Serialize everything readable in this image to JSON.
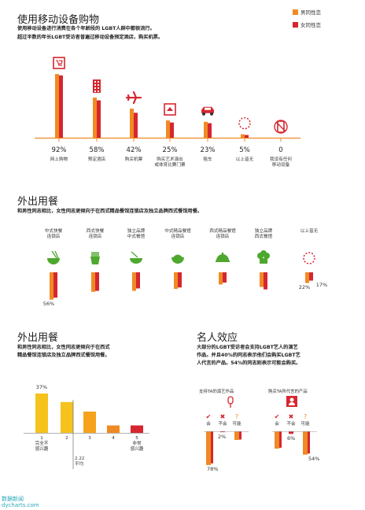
{
  "colors": {
    "gay_male": "#f08a24",
    "lesbian": "#d6262f",
    "yellow": "#f6c21c",
    "green": "#4ea82f",
    "red": "#d6262f"
  },
  "legend": {
    "male": "男同性恋",
    "female": "女同性恋"
  },
  "section1": {
    "title": "使用移动设备购物",
    "sub1": "使用移动设备进行消费在各个年龄段的 LGBT人群中都很流行。",
    "sub2": "超过半数的年长LGBT受访者普遍过移动设备预定酒店，购买机票。"
  },
  "section2": {
    "title": "外出用餐",
    "sub": "和男性同志相比，女性同志更倾向于在西式精品餐馆连锁店及独立品牌西式餐馆用餐。"
  },
  "section3": {
    "title": "外出用餐",
    "sub1": "和男性同志相比，女性同志更倾向于在西式",
    "sub2": "精品餐馆连锁店及独立品牌西式餐馆用餐。",
    "avg": "2.22",
    "avg_label": "平均"
  },
  "section4": {
    "title": "名人效应",
    "sub1": "大部分的LGBT受访者会支持LGBT艺人的演艺",
    "sub2": "作品。并且40%的同志表示他们会购买LGBT艺",
    "sub3": "人代言的产品。54%的同志则表示可能会购买。",
    "group_a": "支持TA的演艺作品",
    "group_b": "购买TA所代言的产品",
    "opts": [
      "会",
      "不会",
      "可能"
    ]
  },
  "watermark": {
    "line1": "数据新闻",
    "line2": "dycharts.com"
  },
  "chart_data": [
    {
      "type": "bar",
      "categories": [
        "网上购物",
        "预定酒店",
        "购买机票",
        "购买艺术演出或体育比赛门票",
        "租车",
        "以上皆无",
        "我没有任何移动设备"
      ],
      "labels": [
        "网上购物",
        "预定酒店",
        "购买机票",
        "购买艺术演出\n或体育比赛门票",
        "租车",
        "以上皆无",
        "我没有任何\n移动设备"
      ],
      "display": [
        "92%",
        "58%",
        "42%",
        "25%",
        "23%",
        "5%",
        "0"
      ],
      "series": [
        {
          "name": "男同性恋",
          "values": [
            92,
            58,
            42,
            25,
            23,
            5,
            0
          ]
        },
        {
          "name": "女同性恋",
          "values": [
            90,
            54,
            36,
            22,
            21,
            4,
            0
          ]
        }
      ],
      "ylim": [
        0,
        100
      ],
      "icons": [
        "shopping-cart-icon",
        "hotel-icon",
        "airplane-icon",
        "ticket-icon",
        "car-icon",
        "dotted-circle-icon",
        "no-device-icon"
      ]
    },
    {
      "type": "bar",
      "categories": [
        "中式快餐连锁店",
        "西式快餐连锁店",
        "独立品牌中式餐馆",
        "中式精品餐馆连锁店",
        "西式精品餐馆连锁店",
        "独立品牌西式餐馆",
        "以上皆无"
      ],
      "labels": [
        "中式快餐\n连锁店",
        "西式快餐\n连锁店",
        "独立品牌\n中式餐馆",
        "中式精品餐馆\n连锁店",
        "西式精品餐馆\n连锁店",
        "独立品牌\n西式餐馆",
        "以上皆无"
      ],
      "series": [
        {
          "name": "男同性恋",
          "values": [
            56,
            40,
            38,
            34,
            25,
            30,
            22
          ]
        },
        {
          "name": "女同性恋",
          "values": [
            52,
            38,
            33,
            31,
            21,
            35,
            17
          ]
        }
      ],
      "data_labels": [
        {
          "index": 0,
          "text": "56%"
        },
        {
          "index": 6,
          "text": "22%"
        },
        {
          "index": 6,
          "text": "17%",
          "series": 1
        }
      ],
      "ylim": [
        0,
        100
      ],
      "icons": [
        "noodle-bowl-icon",
        "fries-icon",
        "chopsticks-bowl-icon",
        "rice-bowl-icon",
        "cloche-icon",
        "chef-hat-icon",
        "dotted-circle-icon"
      ]
    },
    {
      "type": "bar",
      "categories": [
        "1",
        "2",
        "3",
        "4",
        "5"
      ],
      "labels": [
        "1\n完全不\n感兴趣",
        "2",
        "3",
        "4",
        "5\n非常\n感兴趣"
      ],
      "values": [
        37,
        29,
        20,
        7,
        7
      ],
      "data_labels": [
        {
          "index": 0,
          "text": "37%"
        }
      ],
      "ylim": [
        0,
        40
      ]
    },
    {
      "type": "bar",
      "groups": [
        "支持TA的演艺作品",
        "购买TA所代言的产品"
      ],
      "categories": [
        "会",
        "不会",
        "可能"
      ],
      "series": [
        {
          "name": "支持TA的演艺作品",
          "values": [
            78,
            2,
            20
          ]
        },
        {
          "name": "购买TA所代言的产品",
          "values": [
            40,
            6,
            54
          ]
        }
      ],
      "data_labels": [
        "78%",
        "2%",
        "6%",
        "54%"
      ]
    }
  ]
}
